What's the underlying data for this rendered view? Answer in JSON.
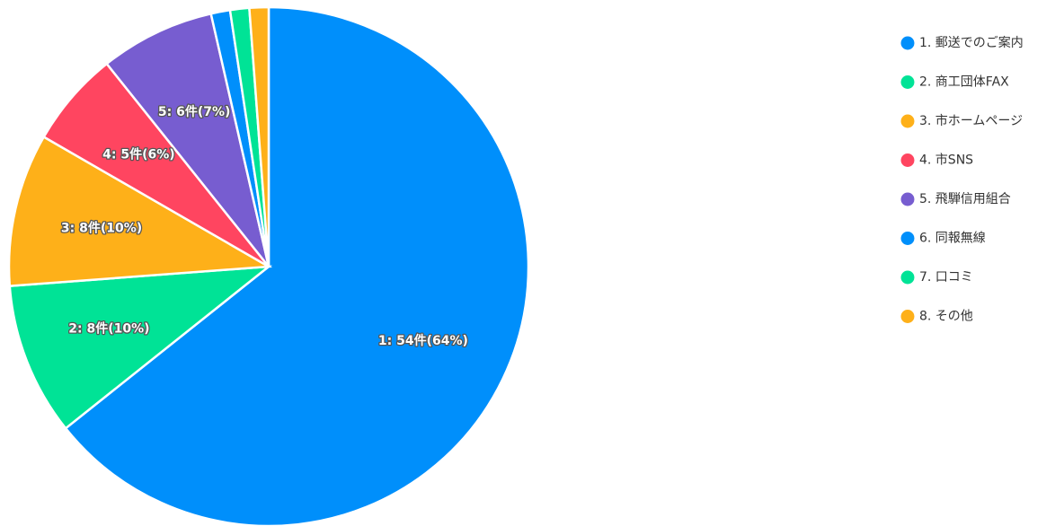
{
  "chart_data": {
    "type": "pie",
    "categories": [
      "1. 郵送でのご案内",
      "2. 商工団体FAX",
      "3. 市ホームページ",
      "4. 市SNS",
      "5. 飛騨信用組合",
      "6. 同報無線",
      "7. 口コミ",
      "8. その他"
    ],
    "values": [
      54,
      8,
      8,
      5,
      6,
      1,
      1,
      1
    ],
    "colors": [
      "#008FFB",
      "#00E396",
      "#FEB019",
      "#FF4560",
      "#775DD0",
      "#008FFB",
      "#00E396",
      "#FEB019"
    ],
    "data_labels": [
      "1: 54件(64%)",
      "2: 8件(10%)",
      "3: 8件(10%)",
      "4: 5件(6%)",
      "5: 6件(7%)",
      "",
      "",
      ""
    ],
    "start_angle_deg": 0,
    "direction": "clockwise",
    "legend_position": "right"
  }
}
